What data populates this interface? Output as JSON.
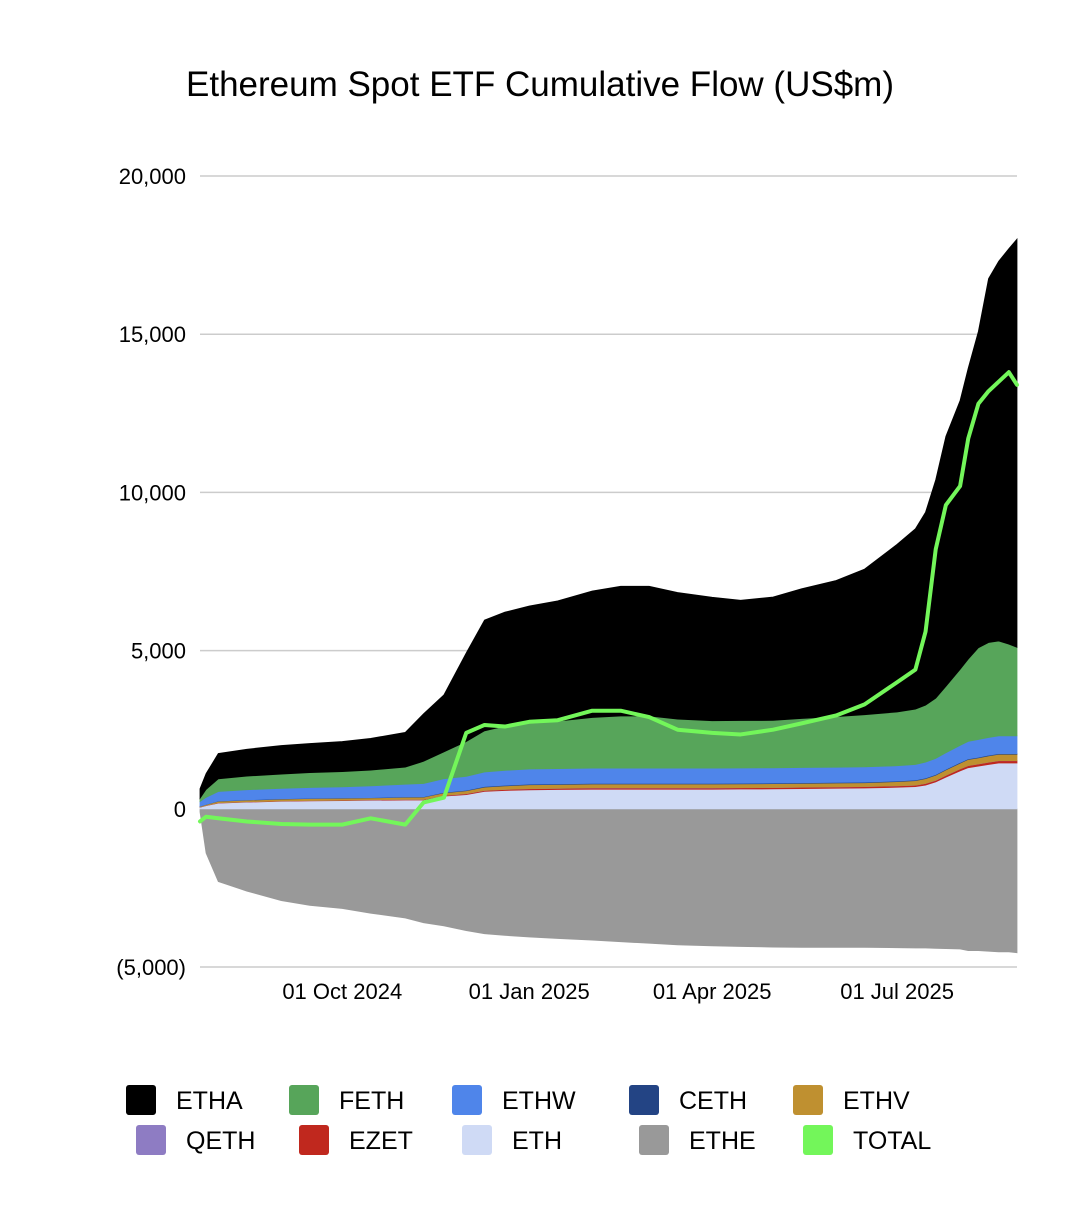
{
  "chart_data": {
    "type": "area",
    "title": "Ethereum Spot ETF Cumulative Flow (US$m)",
    "xlabel": "",
    "ylabel": "",
    "ylim": [
      -5000,
      20000
    ],
    "y_ticks": [
      {
        "value": 20000,
        "label": "20,000"
      },
      {
        "value": 15000,
        "label": "15,000"
      },
      {
        "value": 10000,
        "label": "10,000"
      },
      {
        "value": 5000,
        "label": "5,000"
      },
      {
        "value": 0,
        "label": "0"
      },
      {
        "value": -5000,
        "label": "(5,000)"
      }
    ],
    "x_range": [
      "2024-07-23",
      "2025-08-29"
    ],
    "x_ticks": [
      {
        "date": "2024-10-01",
        "label": "01 Oct 2024"
      },
      {
        "date": "2025-01-01",
        "label": "01 Jan 2025"
      },
      {
        "date": "2025-04-01",
        "label": "01 Apr 2025"
      },
      {
        "date": "2025-07-01",
        "label": "01 Jul 2025"
      }
    ],
    "grid": true,
    "legend_position": "bottom",
    "x": [
      "2024-07-23",
      "2024-07-26",
      "2024-08-01",
      "2024-08-15",
      "2024-09-01",
      "2024-09-15",
      "2024-10-01",
      "2024-10-15",
      "2024-11-01",
      "2024-11-10",
      "2024-11-20",
      "2024-12-01",
      "2024-12-10",
      "2024-12-20",
      "2025-01-01",
      "2025-01-15",
      "2025-02-01",
      "2025-02-15",
      "2025-03-01",
      "2025-03-15",
      "2025-04-01",
      "2025-04-15",
      "2025-05-01",
      "2025-05-15",
      "2025-06-01",
      "2025-06-15",
      "2025-07-01",
      "2025-07-10",
      "2025-07-15",
      "2025-07-20",
      "2025-07-25",
      "2025-08-01",
      "2025-08-05",
      "2025-08-10",
      "2025-08-15",
      "2025-08-20",
      "2025-08-25",
      "2025-08-29"
    ],
    "series": [
      {
        "name": "ETHE",
        "color": "#999999",
        "values": [
          -100,
          -1400,
          -2300,
          -2600,
          -2900,
          -3050,
          -3150,
          -3300,
          -3450,
          -3600,
          -3700,
          -3850,
          -3950,
          -4000,
          -4050,
          -4100,
          -4150,
          -4200,
          -4250,
          -4300,
          -4330,
          -4350,
          -4370,
          -4380,
          -4380,
          -4380,
          -4390,
          -4400,
          -4400,
          -4410,
          -4420,
          -4430,
          -4480,
          -4480,
          -4500,
          -4520,
          -4520,
          -4550
        ]
      },
      {
        "name": "ETH",
        "color": "#cfdaf5",
        "values": [
          50,
          100,
          180,
          210,
          240,
          250,
          260,
          270,
          280,
          280,
          400,
          450,
          550,
          580,
          600,
          610,
          620,
          620,
          620,
          620,
          620,
          625,
          630,
          640,
          650,
          660,
          680,
          700,
          750,
          850,
          1000,
          1200,
          1300,
          1350,
          1400,
          1450,
          1450,
          1450
        ]
      },
      {
        "name": "EZET",
        "color": "#c0281e",
        "values": [
          5,
          5,
          10,
          10,
          10,
          12,
          12,
          12,
          15,
          15,
          20,
          25,
          30,
          30,
          35,
          35,
          40,
          40,
          40,
          40,
          40,
          40,
          40,
          40,
          40,
          40,
          45,
          45,
          50,
          50,
          55,
          60,
          65,
          65,
          70,
          70,
          70,
          70
        ]
      },
      {
        "name": "QETH",
        "color": "#8e7cc3",
        "values": [
          2,
          2,
          3,
          3,
          3,
          3,
          3,
          3,
          4,
          4,
          4,
          5,
          5,
          5,
          5,
          5,
          5,
          5,
          5,
          5,
          5,
          5,
          5,
          5,
          5,
          5,
          5,
          5,
          5,
          5,
          5,
          5,
          5,
          5,
          5,
          5,
          5,
          5
        ]
      },
      {
        "name": "ETHV",
        "color": "#bf9030",
        "values": [
          20,
          30,
          45,
          50,
          55,
          60,
          60,
          60,
          65,
          70,
          80,
          90,
          100,
          110,
          120,
          120,
          120,
          120,
          120,
          120,
          120,
          120,
          120,
          120,
          120,
          120,
          130,
          140,
          150,
          160,
          170,
          180,
          190,
          190,
          200,
          200,
          200,
          200
        ]
      },
      {
        "name": "CETH",
        "color": "#234484",
        "values": [
          5,
          5,
          10,
          10,
          10,
          10,
          10,
          10,
          12,
          12,
          15,
          15,
          20,
          20,
          20,
          20,
          20,
          20,
          20,
          20,
          20,
          20,
          20,
          20,
          20,
          20,
          20,
          20,
          20,
          20,
          20,
          20,
          20,
          20,
          20,
          20,
          20,
          20
        ]
      },
      {
        "name": "ETHW",
        "color": "#4f85ea",
        "values": [
          150,
          220,
          300,
          320,
          330,
          340,
          350,
          370,
          400,
          420,
          430,
          440,
          460,
          470,
          480,
          480,
          480,
          480,
          480,
          480,
          480,
          480,
          480,
          480,
          480,
          480,
          480,
          490,
          500,
          510,
          520,
          540,
          550,
          560,
          560,
          560,
          560,
          560
        ]
      },
      {
        "name": "FETH",
        "color": "#57a55a",
        "values": [
          100,
          250,
          400,
          430,
          450,
          470,
          480,
          500,
          540,
          700,
          850,
          1100,
          1300,
          1400,
          1450,
          1500,
          1600,
          1650,
          1650,
          1550,
          1500,
          1500,
          1500,
          1550,
          1600,
          1650,
          1700,
          1750,
          1800,
          1900,
          2100,
          2400,
          2600,
          2900,
          3000,
          3000,
          2900,
          2800
        ]
      },
      {
        "name": "ETHA",
        "color": "#000000",
        "values": [
          300,
          500,
          800,
          850,
          900,
          920,
          950,
          1000,
          1100,
          1500,
          1800,
          2800,
          3500,
          3600,
          3700,
          3800,
          4000,
          4100,
          4100,
          4000,
          3900,
          3800,
          3900,
          4100,
          4300,
          4600,
          5300,
          5700,
          6100,
          6900,
          7900,
          8500,
          9200,
          10000,
          11500,
          12000,
          12500,
          12900
        ]
      }
    ],
    "total": {
      "name": "TOTAL",
      "color": "#73f65a",
      "values": [
        -400,
        -250,
        -300,
        -400,
        -480,
        -500,
        -500,
        -300,
        -500,
        200,
        350,
        2400,
        2650,
        2600,
        2750,
        2800,
        3100,
        3100,
        2900,
        2500,
        2400,
        2350,
        2500,
        2700,
        2950,
        3300,
        4000,
        4400,
        5600,
        8200,
        9600,
        10200,
        11700,
        12800,
        13200,
        13500,
        13800,
        13400
      ]
    },
    "legend": [
      {
        "name": "ETHA",
        "color": "#000000"
      },
      {
        "name": "FETH",
        "color": "#57a55a"
      },
      {
        "name": "ETHW",
        "color": "#4f85ea"
      },
      {
        "name": "CETH",
        "color": "#234484"
      },
      {
        "name": "ETHV",
        "color": "#bf9030"
      },
      {
        "name": "QETH",
        "color": "#8e7cc3"
      },
      {
        "name": "EZET",
        "color": "#c0281e"
      },
      {
        "name": "ETH",
        "color": "#cfdaf5"
      },
      {
        "name": "ETHE",
        "color": "#999999"
      },
      {
        "name": "TOTAL",
        "color": "#73f65a"
      }
    ]
  }
}
